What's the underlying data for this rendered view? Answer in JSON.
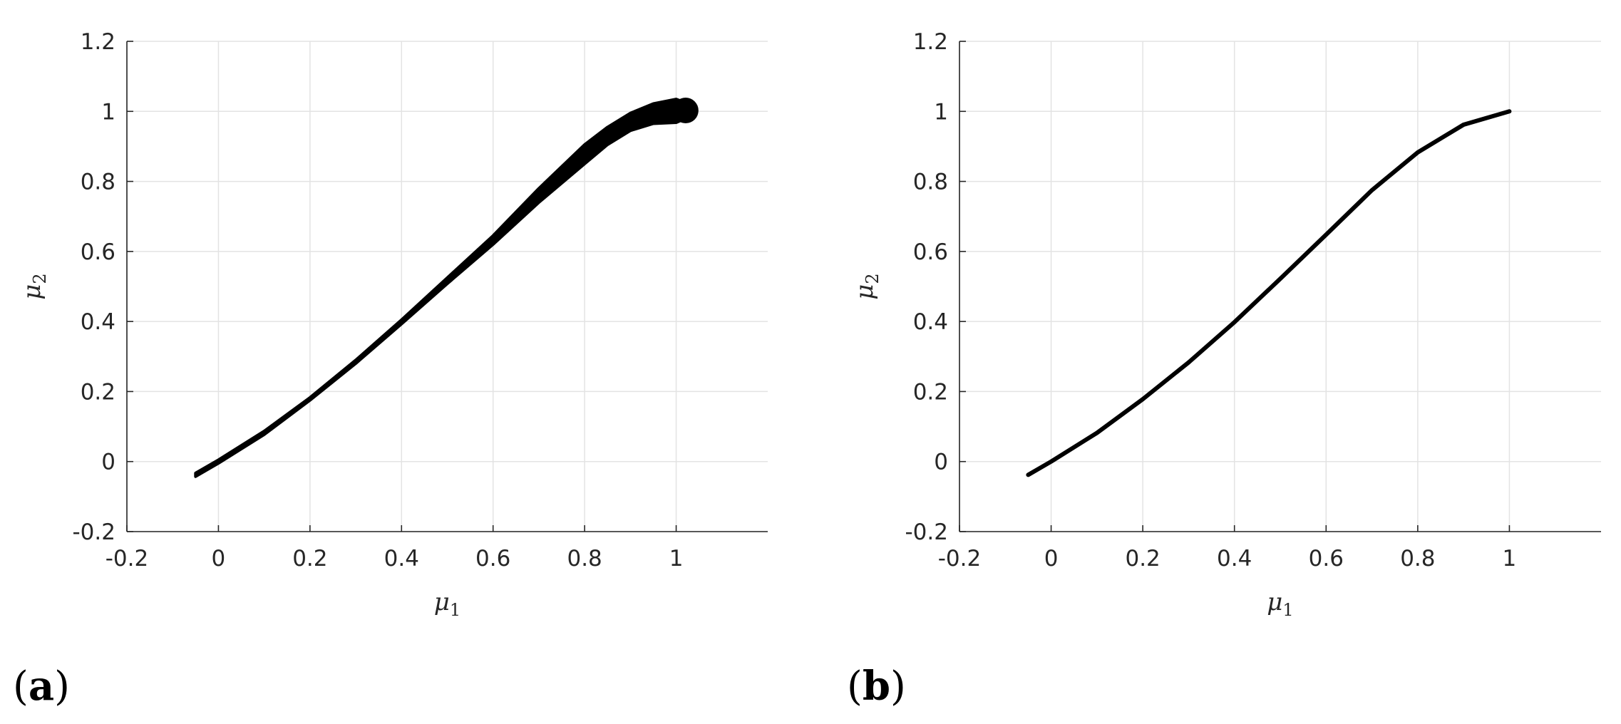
{
  "chart_data": [
    {
      "type": "area",
      "panel_label": "a",
      "title": "",
      "xlabel": "μ",
      "xlabel_sub": "1",
      "ylabel": "μ",
      "ylabel_sub": "2",
      "xlim": [
        -0.2,
        1.2
      ],
      "ylim": [
        -0.2,
        1.2
      ],
      "xticks": [
        "-0.2",
        "0",
        "0.2",
        "0.4",
        "0.6",
        "0.8",
        "1"
      ],
      "yticks": [
        "-0.2",
        "0",
        "0.2",
        "0.4",
        "0.6",
        "0.8",
        "1",
        "1.2"
      ],
      "grid": true,
      "series": [
        {
          "color": "#000000",
          "upper": [
            [
              -0.05,
              -0.033
            ],
            [
              0,
              0.005
            ],
            [
              0.1,
              0.087
            ],
            [
              0.2,
              0.183
            ],
            [
              0.3,
              0.29
            ],
            [
              0.4,
              0.405
            ],
            [
              0.5,
              0.525
            ],
            [
              0.6,
              0.645
            ],
            [
              0.7,
              0.78
            ],
            [
              0.8,
              0.905
            ],
            [
              0.85,
              0.955
            ],
            [
              0.9,
              0.995
            ],
            [
              0.95,
              1.022
            ],
            [
              1.0,
              1.035
            ],
            [
              1.03,
              1.02
            ]
          ],
          "lower": [
            [
              1.03,
              0.985
            ],
            [
              1.0,
              0.968
            ],
            [
              0.95,
              0.965
            ],
            [
              0.9,
              0.945
            ],
            [
              0.85,
              0.905
            ],
            [
              0.8,
              0.85
            ],
            [
              0.7,
              0.74
            ],
            [
              0.6,
              0.62
            ],
            [
              0.5,
              0.508
            ],
            [
              0.4,
              0.393
            ],
            [
              0.3,
              0.28
            ],
            [
              0.2,
              0.175
            ],
            [
              0.1,
              0.077
            ],
            [
              0,
              -0.005
            ],
            [
              -0.05,
              -0.043
            ]
          ]
        }
      ]
    },
    {
      "type": "line",
      "panel_label": "b",
      "title": "",
      "xlabel": "μ",
      "xlabel_sub": "1",
      "ylabel": "μ",
      "ylabel_sub": "2",
      "xlim": [
        -0.2,
        1.2
      ],
      "ylim": [
        -0.2,
        1.2
      ],
      "xticks": [
        "-0.2",
        "0",
        "0.2",
        "0.4",
        "0.6",
        "0.8",
        "1"
      ],
      "yticks": [
        "-0.2",
        "0",
        "0.2",
        "0.4",
        "0.6",
        "0.8",
        "1",
        "1.2"
      ],
      "grid": true,
      "series": [
        {
          "color": "#000000",
          "points": [
            [
              -0.05,
              -0.038
            ],
            [
              0,
              0
            ],
            [
              0.1,
              0.082
            ],
            [
              0.2,
              0.178
            ],
            [
              0.3,
              0.283
            ],
            [
              0.4,
              0.398
            ],
            [
              0.5,
              0.522
            ],
            [
              0.6,
              0.648
            ],
            [
              0.7,
              0.775
            ],
            [
              0.8,
              0.883
            ],
            [
              0.9,
              0.962
            ],
            [
              1.0,
              1.0
            ]
          ]
        }
      ]
    }
  ]
}
